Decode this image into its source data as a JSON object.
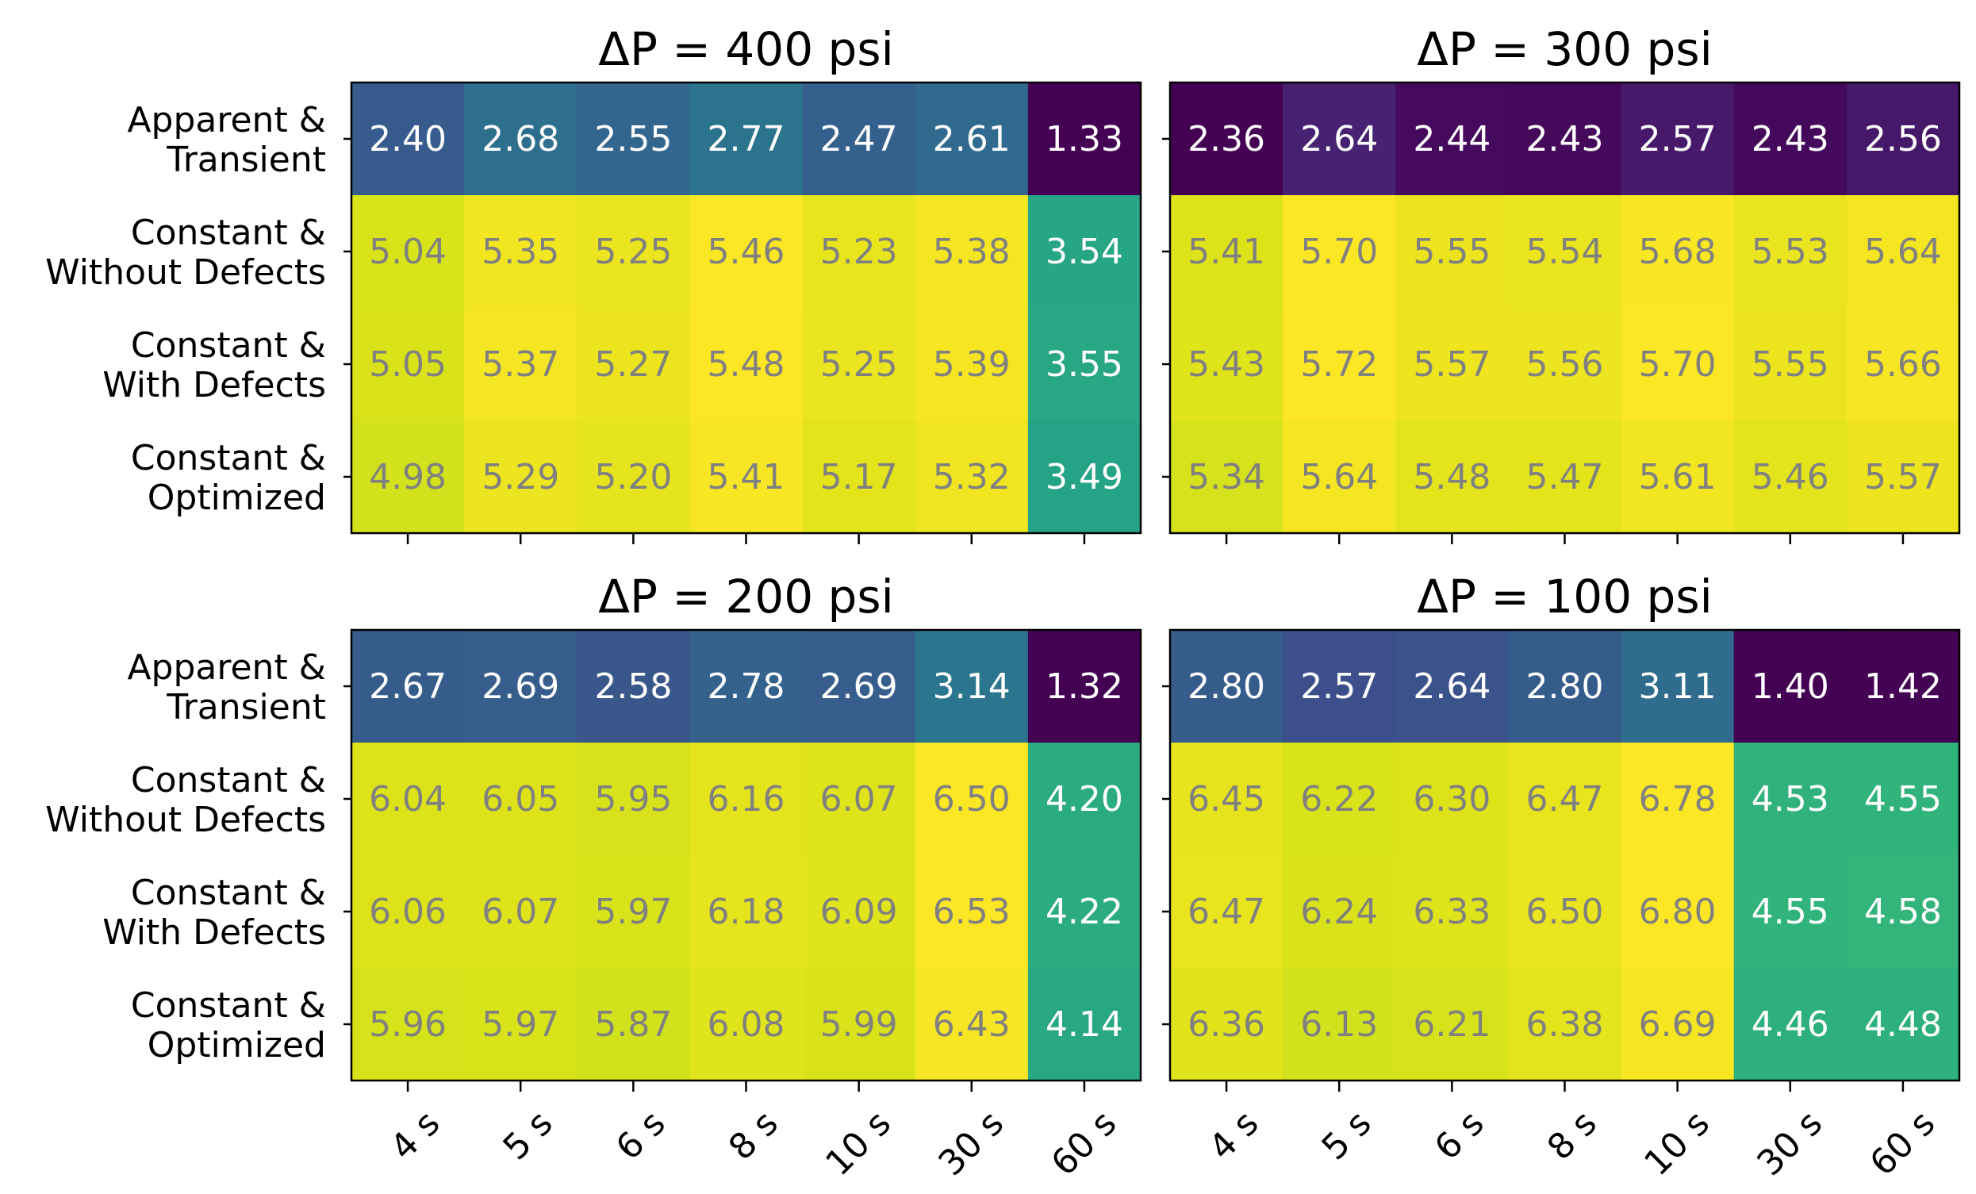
{
  "chart_data": [
    {
      "type": "heatmap",
      "title": "ΔP = 400 psi",
      "rows": [
        "Apparent & Transient",
        "Constant & Without Defects",
        "Constant & With Defects",
        "Constant & Optimized"
      ],
      "row_label_lines": [
        [
          "Apparent &",
          "Transient"
        ],
        [
          "Constant &",
          "Without Defects"
        ],
        [
          "Constant &",
          "With Defects"
        ],
        [
          "Constant &",
          "Optimized"
        ]
      ],
      "columns": [
        "4 s",
        "5 s",
        "6 s",
        "8 s",
        "10 s",
        "30 s",
        "60 s"
      ],
      "values": [
        [
          2.4,
          2.68,
          2.55,
          2.77,
          2.47,
          2.61,
          1.33
        ],
        [
          5.04,
          5.35,
          5.25,
          5.46,
          5.23,
          5.38,
          3.54
        ],
        [
          5.05,
          5.37,
          5.27,
          5.48,
          5.25,
          5.39,
          3.55
        ],
        [
          4.98,
          5.29,
          5.2,
          5.41,
          5.17,
          5.32,
          3.49
        ]
      ],
      "colormap": "viridis",
      "xlabel": "",
      "ylabel": ""
    },
    {
      "type": "heatmap",
      "title": "ΔP = 300 psi",
      "rows": [
        "Apparent & Transient",
        "Constant & Without Defects",
        "Constant & With Defects",
        "Constant & Optimized"
      ],
      "columns": [
        "4 s",
        "5 s",
        "6 s",
        "8 s",
        "10 s",
        "30 s",
        "60 s"
      ],
      "values": [
        [
          2.36,
          2.64,
          2.44,
          2.43,
          2.57,
          2.43,
          2.56
        ],
        [
          5.41,
          5.7,
          5.55,
          5.54,
          5.68,
          5.53,
          5.64
        ],
        [
          5.43,
          5.72,
          5.57,
          5.56,
          5.7,
          5.55,
          5.66
        ],
        [
          5.34,
          5.64,
          5.48,
          5.47,
          5.61,
          5.46,
          5.57
        ]
      ],
      "colormap": "viridis",
      "xlabel": "",
      "ylabel": ""
    },
    {
      "type": "heatmap",
      "title": "ΔP = 200 psi",
      "rows": [
        "Apparent & Transient",
        "Constant & Without Defects",
        "Constant & With Defects",
        "Constant & Optimized"
      ],
      "row_label_lines": [
        [
          "Apparent &",
          "Transient"
        ],
        [
          "Constant &",
          "Without Defects"
        ],
        [
          "Constant &",
          "With Defects"
        ],
        [
          "Constant &",
          "Optimized"
        ]
      ],
      "columns": [
        "4 s",
        "5 s",
        "6 s",
        "8 s",
        "10 s",
        "30 s",
        "60 s"
      ],
      "values": [
        [
          2.67,
          2.69,
          2.58,
          2.78,
          2.69,
          3.14,
          1.32
        ],
        [
          6.04,
          6.05,
          5.95,
          6.16,
          6.07,
          6.5,
          4.2
        ],
        [
          6.06,
          6.07,
          5.97,
          6.18,
          6.09,
          6.53,
          4.22
        ],
        [
          5.96,
          5.97,
          5.87,
          6.08,
          5.99,
          6.43,
          4.14
        ]
      ],
      "colormap": "viridis",
      "xlabel": "",
      "ylabel": ""
    },
    {
      "type": "heatmap",
      "title": "ΔP = 100 psi",
      "rows": [
        "Apparent & Transient",
        "Constant & Without Defects",
        "Constant & With Defects",
        "Constant & Optimized"
      ],
      "columns": [
        "4 s",
        "5 s",
        "6 s",
        "8 s",
        "10 s",
        "30 s",
        "60 s"
      ],
      "values": [
        [
          2.8,
          2.57,
          2.64,
          2.8,
          3.11,
          1.4,
          1.42
        ],
        [
          6.45,
          6.22,
          6.3,
          6.47,
          6.78,
          4.53,
          4.55
        ],
        [
          6.47,
          6.24,
          6.33,
          6.5,
          6.8,
          4.55,
          4.58
        ],
        [
          6.36,
          6.13,
          6.21,
          6.38,
          6.69,
          4.46,
          4.48
        ]
      ],
      "colormap": "viridis",
      "xlabel": "",
      "ylabel": ""
    }
  ]
}
